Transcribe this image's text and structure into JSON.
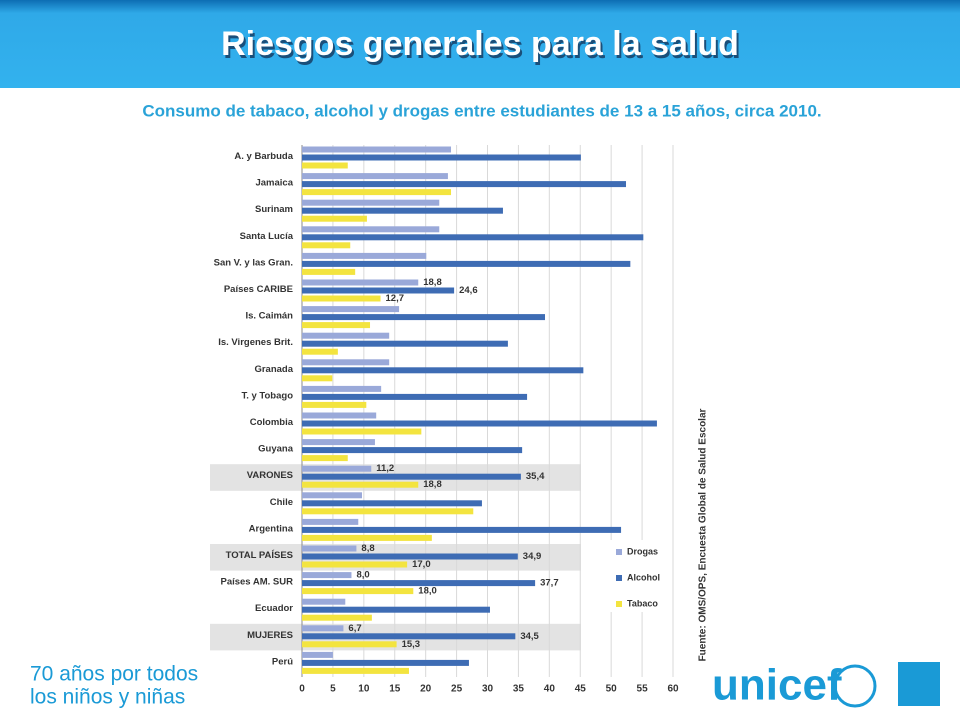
{
  "header": {
    "title": "Riesgos generales para la salud"
  },
  "chart_data": {
    "type": "hbar",
    "subtitle": "Consumo de tabaco, alcohol y drogas entre estudiantes de 13 a 15 años, circa 2010.",
    "source": "Fuente: OMS/OPS, Encuesta Global de Salud Escolar",
    "categories": [
      "A. y Barbuda",
      "Jamaica",
      "Surinam",
      "Santa Lucía",
      "San V. y las Gran.",
      "Países CARIBE",
      "Is. Caimán",
      "Is. Virgenes Brit.",
      "Granada",
      "T. y Tobago",
      "Colombia",
      "Guyana",
      "VARONES",
      "Chile",
      "Argentina",
      "TOTAL PAÍSES",
      "Países AM. SUR",
      "Ecuador",
      "MUJERES",
      "Perú"
    ],
    "series": [
      {
        "name": "Drogas",
        "color": "#9aa9d9",
        "values": [
          24.1,
          23.6,
          22.2,
          22.2,
          20.1,
          18.8,
          15.7,
          14.1,
          14.1,
          12.8,
          12.0,
          11.8,
          11.2,
          9.7,
          9.1,
          8.8,
          8.0,
          7.0,
          6.7,
          5.0
        ],
        "value_labels": [
          null,
          null,
          null,
          null,
          null,
          "18,8",
          null,
          null,
          null,
          null,
          null,
          null,
          "11,2",
          null,
          null,
          "8,8",
          "8,0",
          null,
          "6,7",
          null
        ]
      },
      {
        "name": "Alcohol",
        "color": "#3e6cb4",
        "values": [
          45.1,
          52.4,
          32.5,
          55.2,
          53.1,
          24.6,
          39.3,
          33.3,
          45.5,
          36.4,
          57.4,
          35.6,
          35.4,
          29.1,
          51.6,
          34.9,
          37.7,
          30.4,
          34.5,
          27.0
        ],
        "value_labels": [
          null,
          null,
          null,
          null,
          null,
          "24,6",
          null,
          null,
          null,
          null,
          null,
          null,
          "35,4",
          null,
          null,
          "34,9",
          "37,7",
          null,
          "34,5",
          null
        ]
      },
      {
        "name": "Tabaco",
        "color": "#f3e43f",
        "values": [
          7.4,
          24.1,
          10.5,
          7.8,
          8.6,
          12.7,
          11.0,
          5.8,
          4.9,
          10.4,
          19.3,
          7.4,
          18.8,
          27.7,
          21.0,
          17.0,
          18.0,
          11.3,
          15.3,
          17.3
        ],
        "value_labels": [
          null,
          null,
          null,
          null,
          null,
          "12,7",
          null,
          null,
          null,
          null,
          null,
          null,
          "18,8",
          null,
          null,
          "17,0",
          "18,0",
          null,
          "15,3",
          null
        ]
      }
    ],
    "xlim": [
      0,
      60
    ],
    "xticks": [
      0,
      5,
      10,
      15,
      20,
      25,
      30,
      35,
      40,
      45,
      50,
      55,
      60
    ],
    "grid": true
  },
  "footer": {
    "line1": "70 años por todos",
    "line2": "los niños y niñas",
    "logo": "unicef"
  }
}
